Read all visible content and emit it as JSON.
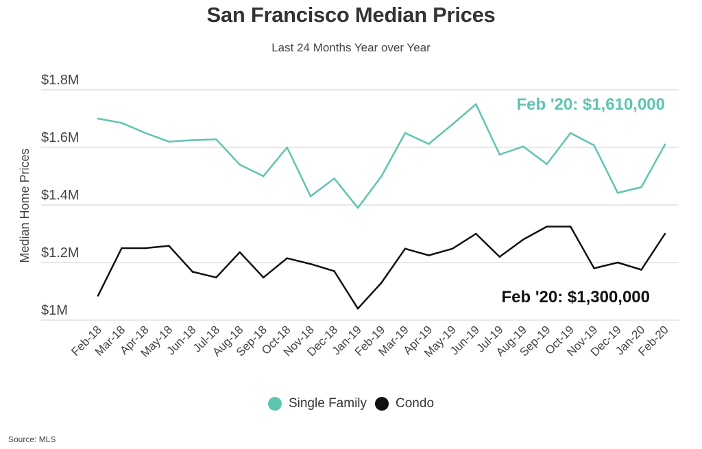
{
  "title": "San Francisco Median Prices",
  "subtitle": "Last 24 Months Year over Year",
  "source": "Source:  MLS",
  "colors": {
    "single_family": "#5ec4b0",
    "condo": "#111111",
    "grid": "#d9d9d9"
  },
  "chart_data": {
    "type": "line",
    "title": "San Francisco Median Prices",
    "subtitle": "Last 24 Months Year over Year",
    "xlabel": "",
    "ylabel": "Median Home Prices",
    "ylim": [
      1000000,
      1800000
    ],
    "yticks": [
      1000000,
      1200000,
      1400000,
      1600000,
      1800000
    ],
    "ytick_labels": [
      "$1M",
      "$1.2M",
      "$1.4M",
      "$1.6M",
      "$1.8M"
    ],
    "grid": true,
    "legend_position": "bottom",
    "categories": [
      "Feb-18",
      "Mar-18",
      "Apr-18",
      "May-18",
      "Jun-18",
      "Jul-18",
      "Aug-18",
      "Sep-18",
      "Oct-18",
      "Nov-18",
      "Dec-18",
      "Jan-19",
      "Feb-19",
      "Mar-19",
      "Apr-19",
      "May-19",
      "Jun-19",
      "Jul-19",
      "Aug-19",
      "Sep-19",
      "Oct-19",
      "Nov-19",
      "Dec-19",
      "Jan-20",
      "Feb-20"
    ],
    "series": [
      {
        "name": "Single Family",
        "color": "#5ec4b0",
        "values": [
          1700000,
          1685000,
          1650000,
          1620000,
          1625000,
          1628000,
          1540000,
          1500000,
          1600000,
          1430000,
          1492000,
          1390000,
          1500000,
          1650000,
          1612000,
          1680000,
          1750000,
          1575000,
          1603000,
          1542000,
          1650000,
          1607000,
          1442000,
          1462000,
          1610000
        ]
      },
      {
        "name": "Condo",
        "color": "#111111",
        "values": [
          1085000,
          1250000,
          1250000,
          1258000,
          1168000,
          1148000,
          1236000,
          1148000,
          1215000,
          1195000,
          1170000,
          1040000,
          1130000,
          1248000,
          1225000,
          1248000,
          1300000,
          1220000,
          1280000,
          1325000,
          1325000,
          1180000,
          1200000,
          1175000,
          1300000
        ]
      }
    ],
    "annotations": [
      {
        "series": "Single Family",
        "text": "Feb '20: $1,610,000"
      },
      {
        "series": "Condo",
        "text": "Feb '20: $1,300,000"
      }
    ]
  }
}
